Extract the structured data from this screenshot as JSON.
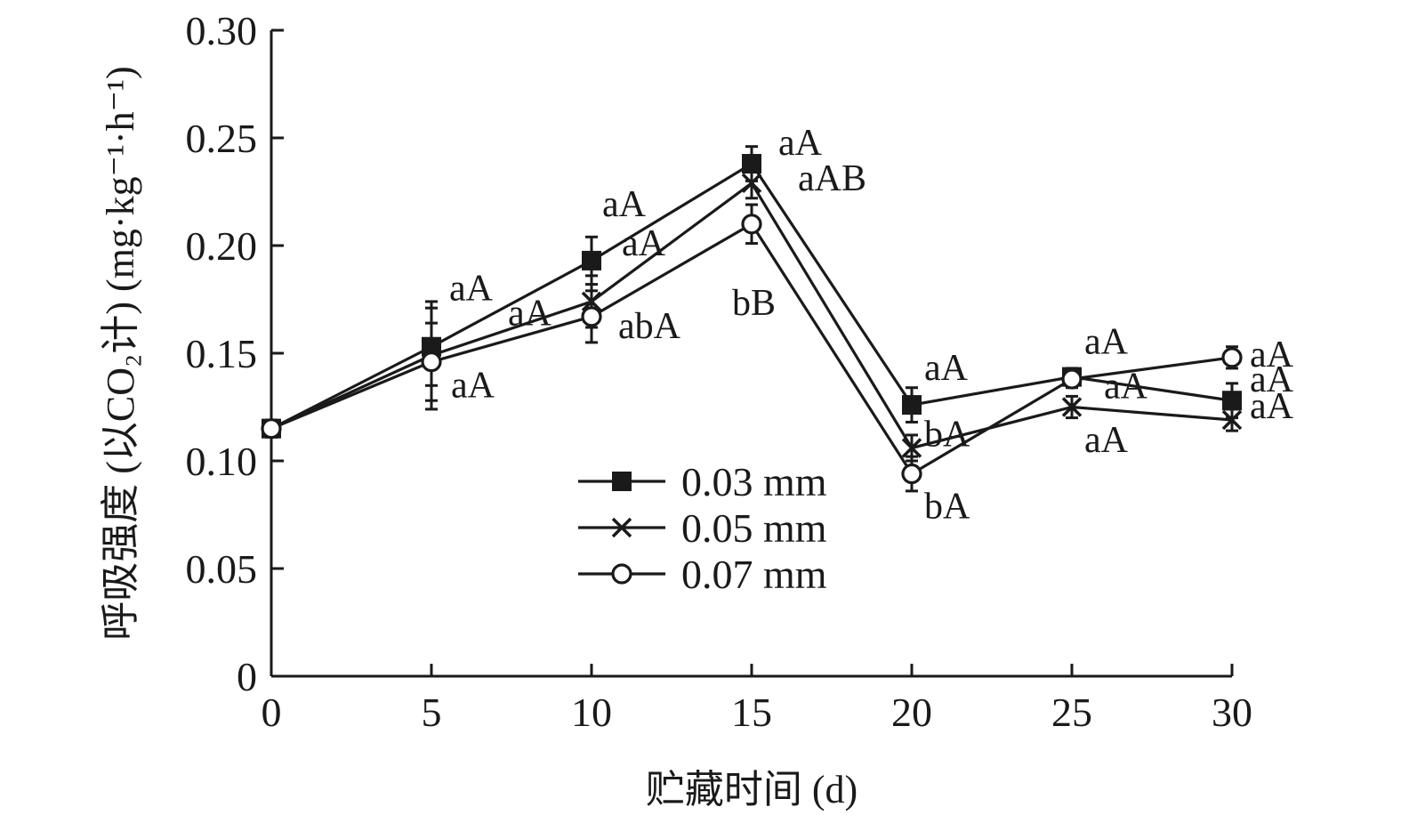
{
  "chart_data": {
    "type": "line",
    "xlabel": "贮藏时间 (d)",
    "ylabel": "呼吸强度 (以CO₂计) (mg·kg⁻¹·h⁻¹)",
    "x": [
      0,
      5,
      10,
      15,
      20,
      25,
      30
    ],
    "xlim": [
      0,
      30
    ],
    "ylim": [
      0,
      0.3
    ],
    "xticks": [
      "0",
      "5",
      "10",
      "15",
      "20",
      "25",
      "30"
    ],
    "yticks": [
      "0",
      "0.05",
      "0.10",
      "0.15",
      "0.20",
      "0.25",
      "0.30"
    ],
    "grid": false,
    "legend_position": "bottom-center",
    "series": [
      {
        "name": "0.03 mm",
        "marker": "filled-square",
        "values": [
          0.115,
          0.153,
          0.193,
          0.238,
          0.126,
          0.139,
          0.128
        ],
        "errors": [
          0.004,
          0.018,
          0.011,
          0.008,
          0.008,
          0.004,
          0.008
        ],
        "labels": [
          "",
          "aA",
          "aA",
          "aA",
          "aA",
          "aA",
          "aA"
        ]
      },
      {
        "name": "0.05 mm",
        "marker": "cross",
        "values": [
          0.115,
          0.149,
          0.174,
          0.229,
          0.106,
          0.125,
          0.119
        ],
        "errors": [
          0.003,
          0.025,
          0.012,
          0.007,
          0.006,
          0.005,
          0.005
        ],
        "labels": [
          "",
          "aA",
          "aA",
          "aAB",
          "bA",
          "aA",
          "aA"
        ]
      },
      {
        "name": "0.07 mm",
        "marker": "open-circle",
        "values": [
          0.115,
          0.146,
          0.167,
          0.21,
          0.094,
          0.138,
          0.148
        ],
        "errors": [
          0.003,
          0.018,
          0.012,
          0.009,
          0.008,
          0.004,
          0.005
        ],
        "labels": [
          "",
          "aA",
          "abA",
          "bB",
          "bA",
          "aA",
          "aA"
        ]
      }
    ]
  }
}
